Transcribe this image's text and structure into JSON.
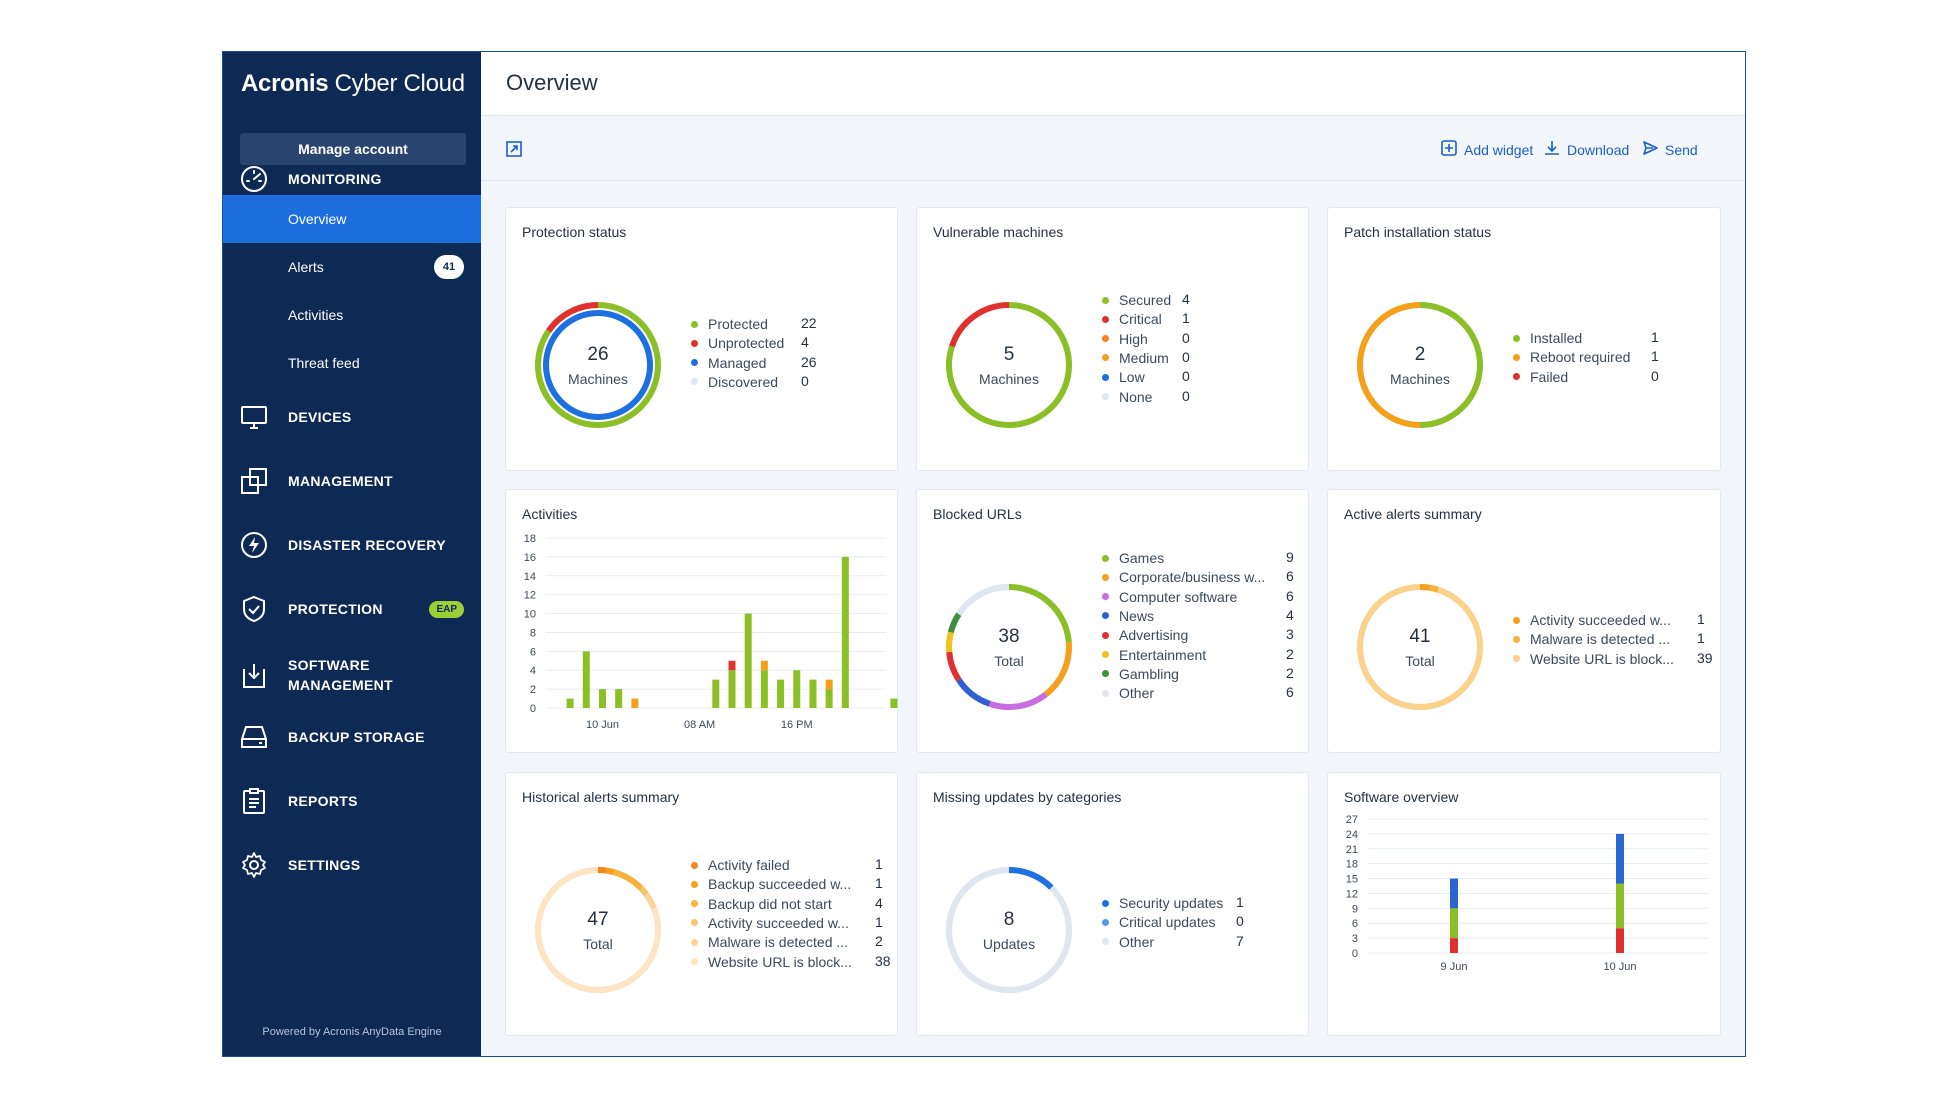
{
  "sidebar": {
    "brand_main": "Acronis",
    "brand_sub": "Cyber Cloud",
    "manage_account": "Manage account",
    "monitoring": "MONITORING",
    "sub_items": [
      {
        "label": "Overview"
      },
      {
        "label": "Alerts",
        "badge": "41"
      },
      {
        "label": "Activities"
      },
      {
        "label": "Threat feed"
      }
    ],
    "sections": [
      {
        "label": "DEVICES",
        "icon": "monitor-icon"
      },
      {
        "label": "MANAGEMENT",
        "icon": "management-icon"
      },
      {
        "label": "DISASTER RECOVERY",
        "icon": "lightning-icon"
      },
      {
        "label": "PROTECTION",
        "icon": "shield-icon",
        "badge": "EAP"
      },
      {
        "label": "SOFTWARE",
        "label2": "MANAGEMENT",
        "icon": "software-install-icon"
      },
      {
        "label": "BACKUP STORAGE",
        "icon": "storage-icon"
      },
      {
        "label": "REPORTS",
        "icon": "clipboard-icon"
      },
      {
        "label": "SETTINGS",
        "icon": "gear-icon"
      }
    ],
    "powered_by": "Powered by Acronis AnyData Engine"
  },
  "header": {
    "title": "Overview",
    "icons": [
      "grid-icon",
      "help-icon",
      "account-icon"
    ]
  },
  "toolbar": {
    "expand_icon": "expand-icon",
    "add_widget": "Add widget",
    "download": "Download",
    "send": "Send"
  },
  "colors": {
    "sidebar": "#0d2a54",
    "accent": "#1d6fe0",
    "green": "#8cbf26",
    "red": "#e0312f",
    "blue": "#1e6fdf",
    "orange": "#f5a01a",
    "light": "#e3e9f1"
  },
  "widgets": {
    "protection": {
      "title": "Protection status",
      "center_value": "26",
      "center_label": "Machines",
      "legend": [
        {
          "label": "Protected",
          "value": "22",
          "color": "#8cbf26"
        },
        {
          "label": "Unprotected",
          "value": "4",
          "color": "#e0312f"
        },
        {
          "label": "Managed",
          "value": "26",
          "color": "#1e6fdf"
        },
        {
          "label": "Discovered",
          "value": "0",
          "color": "#dfe6f0"
        }
      ]
    },
    "vulnerable": {
      "title": "Vulnerable machines",
      "center_value": "5",
      "center_label": "Machines",
      "legend": [
        {
          "label": "Secured",
          "value": "4",
          "color": "#8cbf26"
        },
        {
          "label": "Critical",
          "value": "1",
          "color": "#e0312f"
        },
        {
          "label": "High",
          "value": "0",
          "color": "#f5841f"
        },
        {
          "label": "Medium",
          "value": "0",
          "color": "#f5a01a"
        },
        {
          "label": "Low",
          "value": "0",
          "color": "#1e6fdf"
        },
        {
          "label": "None",
          "value": "0",
          "color": "#dfe6f0"
        }
      ]
    },
    "patch": {
      "title": "Patch installation status",
      "center_value": "2",
      "center_label": "Machines",
      "legend": [
        {
          "label": "Installed",
          "value": "1",
          "color": "#8cbf26"
        },
        {
          "label": "Reboot required",
          "value": "1",
          "color": "#f5a01a"
        },
        {
          "label": "Failed",
          "value": "0",
          "color": "#e0312f"
        }
      ]
    },
    "activities": {
      "title": "Activities"
    },
    "blocked": {
      "title": "Blocked URLs",
      "center_value": "38",
      "center_label": "Total",
      "legend": [
        {
          "label": "Games",
          "value": "9",
          "color": "#8cbf26"
        },
        {
          "label": "Corporate/business w...",
          "value": "6",
          "color": "#f5a01a"
        },
        {
          "label": "Computer software",
          "value": "6",
          "color": "#c86de0"
        },
        {
          "label": "News",
          "value": "4",
          "color": "#2f5fd0"
        },
        {
          "label": "Advertising",
          "value": "3",
          "color": "#e0312f"
        },
        {
          "label": "Entertainment",
          "value": "2",
          "color": "#f2c21a"
        },
        {
          "label": "Gambling",
          "value": "2",
          "color": "#3e8f3a"
        },
        {
          "label": "Other",
          "value": "6",
          "color": "#dfe6f0"
        }
      ]
    },
    "active_alerts": {
      "title": "Active alerts summary",
      "center_value": "41",
      "center_label": "Total",
      "legend": [
        {
          "label": "Activity succeeded w...",
          "value": "1",
          "color": "#f5a01a"
        },
        {
          "label": "Malware is detected ...",
          "value": "1",
          "color": "#f7b23b"
        },
        {
          "label": "Website URL is block...",
          "value": "39",
          "color": "#fcd18a"
        }
      ]
    },
    "historical": {
      "title": "Historical alerts summary",
      "center_value": "47",
      "center_label": "Total",
      "legend": [
        {
          "label": "Activity failed",
          "value": "1",
          "color": "#f5841f"
        },
        {
          "label": "Backup succeeded w...",
          "value": "1",
          "color": "#f5a01a"
        },
        {
          "label": "Backup did not start",
          "value": "4",
          "color": "#f7b23b"
        },
        {
          "label": "Activity succeeded w...",
          "value": "1",
          "color": "#f9c46b"
        },
        {
          "label": "Malware is detected ...",
          "value": "2",
          "color": "#fbd49a"
        },
        {
          "label": "Website URL is block...",
          "value": "38",
          "color": "#fde4c2"
        }
      ]
    },
    "missing": {
      "title": "Missing updates by categories",
      "center_value": "8",
      "center_label": "Updates",
      "legend": [
        {
          "label": "Security updates",
          "value": "1",
          "color": "#1e6fdf"
        },
        {
          "label": "Critical updates",
          "value": "0",
          "color": "#4f9be8"
        },
        {
          "label": "Other",
          "value": "7",
          "color": "#dfe6f0"
        }
      ]
    },
    "software": {
      "title": "Software overview"
    }
  },
  "chart_data": [
    {
      "type": "bar",
      "name": "activities",
      "y_ticks": [
        "18",
        "16",
        "14",
        "12",
        "10",
        "8",
        "6",
        "4",
        "2",
        "0"
      ],
      "ylim": [
        0,
        18
      ],
      "x_labels": [
        {
          "label": "10 Jun",
          "index": 2
        },
        {
          "label": "08 AM",
          "index": 8
        },
        {
          "label": "16 PM",
          "index": 14
        }
      ],
      "bars": [
        {
          "index": 0,
          "green": 1,
          "red": 0,
          "orange": 0
        },
        {
          "index": 1,
          "green": 6,
          "red": 0,
          "orange": 0
        },
        {
          "index": 2,
          "green": 2,
          "red": 0,
          "orange": 0
        },
        {
          "index": 3,
          "green": 2,
          "red": 0,
          "orange": 0
        },
        {
          "index": 4,
          "green": 0,
          "red": 0,
          "orange": 1
        },
        {
          "index": 9,
          "green": 3,
          "red": 0,
          "orange": 0
        },
        {
          "index": 10,
          "green": 4,
          "red": 1,
          "orange": 0
        },
        {
          "index": 11,
          "green": 10,
          "red": 0,
          "orange": 0
        },
        {
          "index": 12,
          "green": 4,
          "red": 0,
          "orange": 1
        },
        {
          "index": 13,
          "green": 3,
          "red": 0,
          "orange": 0
        },
        {
          "index": 14,
          "green": 4,
          "red": 0,
          "orange": 0
        },
        {
          "index": 15,
          "green": 3,
          "red": 0,
          "orange": 0
        },
        {
          "index": 16,
          "green": 2,
          "red": 0,
          "orange": 1
        },
        {
          "index": 17,
          "green": 16,
          "red": 0,
          "orange": 0
        },
        {
          "index": 20,
          "green": 1,
          "red": 0,
          "orange": 0
        }
      ],
      "slots": 21
    },
    {
      "type": "bar",
      "name": "software",
      "y_ticks": [
        "27",
        "24",
        "21",
        "18",
        "15",
        "12",
        "9",
        "6",
        "3",
        "0"
      ],
      "ylim": [
        0,
        27
      ],
      "bars": [
        {
          "label": "9 Jun",
          "red": 3,
          "green": 6,
          "blue": 6
        },
        {
          "label": "10 Jun",
          "red": 5,
          "green": 9,
          "blue": 10
        }
      ]
    }
  ]
}
